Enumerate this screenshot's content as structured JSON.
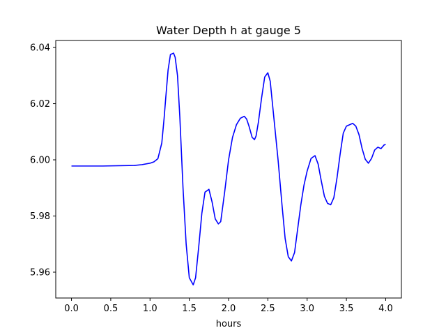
{
  "chart_data": {
    "type": "line",
    "title": "Water Depth h at gauge 5",
    "xlabel": "hours",
    "ylabel": "",
    "xlim": [
      -0.2,
      4.2
    ],
    "ylim": [
      5.9508,
      6.0425
    ],
    "xticks": [
      0.0,
      0.5,
      1.0,
      1.5,
      2.0,
      2.5,
      3.0,
      3.5,
      4.0
    ],
    "xtick_labels": [
      "0.0",
      "0.5",
      "1.0",
      "1.5",
      "2.0",
      "2.5",
      "3.0",
      "3.5",
      "4.0"
    ],
    "yticks": [
      5.96,
      5.98,
      6.0,
      6.02,
      6.04
    ],
    "ytick_labels": [
      "5.96",
      "5.98",
      "6.00",
      "6.02",
      "6.04"
    ],
    "grid": false,
    "legend": "none",
    "series": [
      {
        "color": "#0000ff",
        "x": [
          0.0,
          0.2,
          0.4,
          0.6,
          0.8,
          0.9,
          1.0,
          1.05,
          1.1,
          1.15,
          1.18,
          1.2,
          1.23,
          1.26,
          1.3,
          1.32,
          1.35,
          1.38,
          1.42,
          1.46,
          1.5,
          1.55,
          1.58,
          1.62,
          1.66,
          1.7,
          1.75,
          1.79,
          1.83,
          1.87,
          1.9,
          1.95,
          2.0,
          2.05,
          2.1,
          2.15,
          2.2,
          2.23,
          2.26,
          2.3,
          2.33,
          2.35,
          2.38,
          2.42,
          2.46,
          2.5,
          2.53,
          2.58,
          2.63,
          2.68,
          2.72,
          2.76,
          2.8,
          2.84,
          2.88,
          2.92,
          2.96,
          3.0,
          3.05,
          3.1,
          3.14,
          3.18,
          3.22,
          3.26,
          3.3,
          3.34,
          3.38,
          3.42,
          3.46,
          3.5,
          3.54,
          3.58,
          3.62,
          3.66,
          3.7,
          3.74,
          3.78,
          3.82,
          3.86,
          3.9,
          3.94,
          3.98,
          4.0
        ],
        "y": [
          5.9978,
          5.9978,
          5.9978,
          5.9979,
          5.998,
          5.9983,
          5.9988,
          5.9993,
          6.0004,
          6.006,
          6.015,
          6.022,
          6.032,
          6.0375,
          6.038,
          6.0365,
          6.03,
          6.015,
          5.99,
          5.97,
          5.958,
          5.9555,
          5.958,
          5.969,
          5.981,
          5.9885,
          5.9895,
          5.985,
          5.979,
          5.9772,
          5.978,
          5.9885,
          6.0,
          6.008,
          6.0125,
          6.0148,
          6.0155,
          6.0145,
          6.012,
          6.008,
          6.0072,
          6.0085,
          6.0135,
          6.022,
          6.0295,
          6.031,
          6.028,
          6.014,
          6.0,
          5.984,
          5.972,
          5.9655,
          5.964,
          5.967,
          5.9755,
          5.984,
          5.991,
          5.996,
          6.0005,
          6.0015,
          5.9985,
          5.9925,
          5.987,
          5.9845,
          5.984,
          5.9865,
          5.9935,
          6.002,
          6.0095,
          6.012,
          6.0125,
          6.013,
          6.012,
          6.009,
          6.004,
          6.0002,
          5.9988,
          6.0005,
          6.0035,
          6.0045,
          6.004,
          6.0053,
          6.0055
        ]
      }
    ]
  }
}
